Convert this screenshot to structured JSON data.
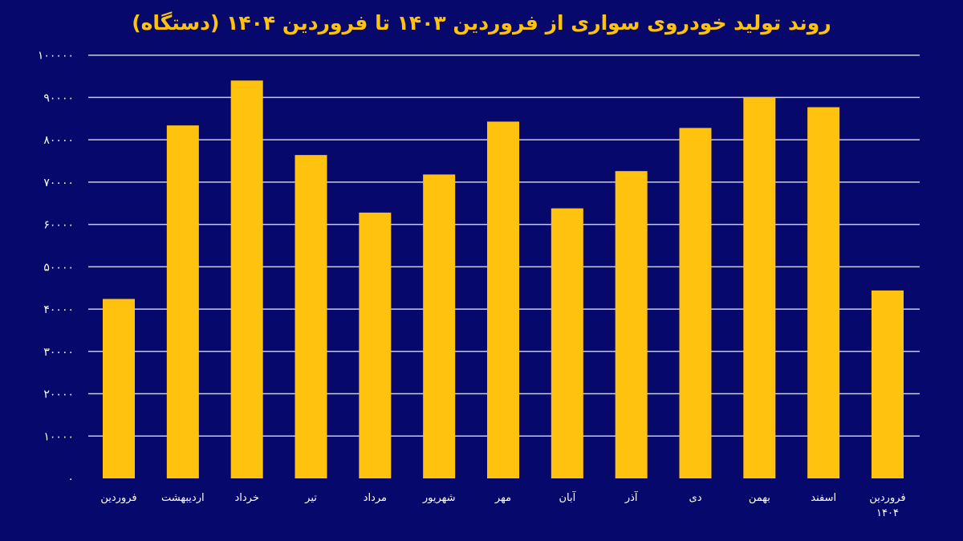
{
  "chart_data": {
    "type": "bar",
    "title": "روند تولید خودروی سواری از فروردین ۱۴۰۳ تا فروردین ۱۴۰۴ (دستگاه)",
    "xlabel": "",
    "ylabel": "",
    "ylim": [
      0,
      100000
    ],
    "yticks": [
      0,
      10000,
      20000,
      30000,
      40000,
      50000,
      60000,
      70000,
      80000,
      90000,
      100000
    ],
    "ytick_labels": [
      "۰",
      "۱۰۰۰۰",
      "۲۰۰۰۰",
      "۳۰۰۰۰",
      "۴۰۰۰۰",
      "۵۰۰۰۰",
      "۶۰۰۰۰",
      "۷۰۰۰۰",
      "۸۰۰۰۰",
      "۹۰۰۰۰",
      "۱۰۰۰۰۰"
    ],
    "grid": true,
    "categories": [
      "فروردین",
      "اردیبهشت",
      "خرداد",
      "تیر",
      "مرداد",
      "شهریور",
      "مهر",
      "آبان",
      "آذر",
      "دی",
      "بهمن",
      "اسفند",
      "فروردین ۱۴۰۴"
    ],
    "values": [
      42400,
      83400,
      94000,
      76400,
      62800,
      71800,
      84300,
      63800,
      72600,
      82800,
      90000,
      87700,
      44400
    ],
    "colors": {
      "bar": "#ffc20e",
      "background": "#06096b",
      "grid": "#c8cbe8",
      "text": "#ffffff",
      "title": "#ffc20e"
    }
  }
}
